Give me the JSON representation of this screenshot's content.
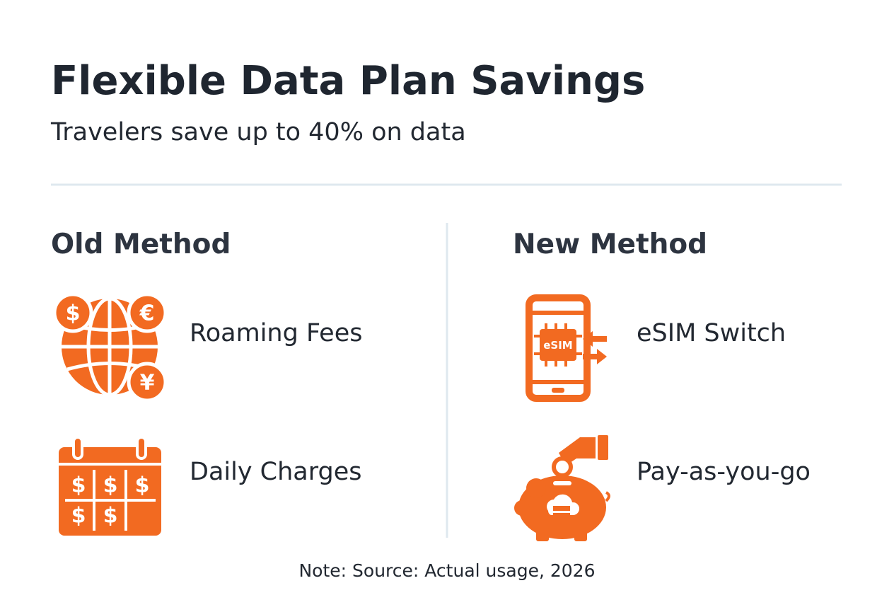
{
  "header": {
    "title": "Flexible Data Plan Savings",
    "subtitle": "Travelers save up to 40% on data"
  },
  "columns": [
    {
      "heading": "Old Method",
      "items": [
        {
          "label": "Roaming Fees",
          "icon_text": [
            "$",
            "€",
            "¥"
          ]
        },
        {
          "label": "Daily Charges",
          "icon_text": [
            "$"
          ]
        }
      ]
    },
    {
      "heading": "New Method",
      "items": [
        {
          "label": "eSIM Switch",
          "icon_text": [
            "eSIM"
          ]
        },
        {
          "label": "Pay-as-you-go"
        }
      ]
    }
  ],
  "note": "Note: Source: Actual usage, 2026"
}
